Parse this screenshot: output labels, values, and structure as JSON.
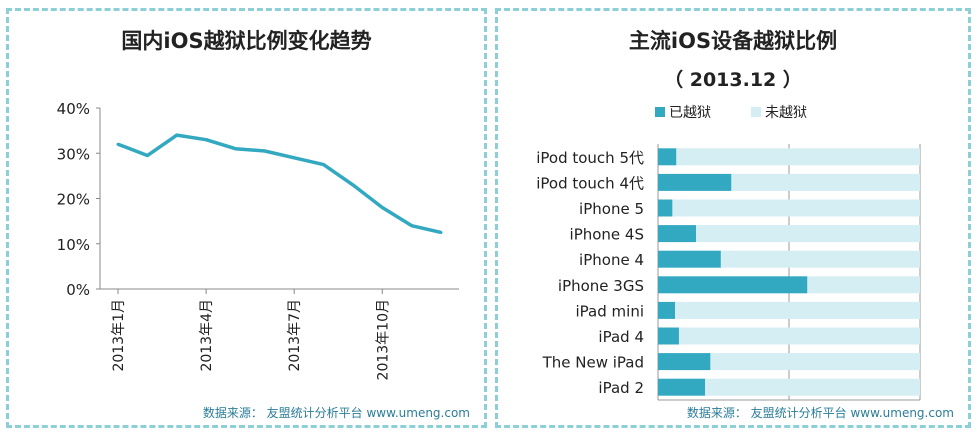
{
  "charts": {
    "left": {
      "title": "国内iOS越狱比例变化趋势",
      "source": "数据来源： 友盟统计分析平台 www.umeng.com"
    },
    "right": {
      "title": "主流iOS设备越狱比例",
      "subtitle": "（ 2013.12 ）",
      "source": "数据来源： 友盟统计分析平台 www.umeng.com"
    }
  },
  "colors": {
    "jailbroken": "#33a8c1",
    "not_jailbroken": "#d4eef3",
    "line": "#33a8c1",
    "border": "#8ccfd6"
  },
  "chart_data": [
    {
      "type": "line",
      "title": "国内iOS越狱比例变化趋势",
      "x": [
        "2013年1月",
        "2013年2月",
        "2013年3月",
        "2013年4月",
        "2013年5月",
        "2013年6月",
        "2013年7月",
        "2013年8月",
        "2013年9月",
        "2013年10月",
        "2013年11月",
        "2013年12月"
      ],
      "x_tick_labels": [
        "2013年1月",
        "2013年4月",
        "2013年7月",
        "2013年10月"
      ],
      "series": [
        {
          "values": [
            0.32,
            0.295,
            0.34,
            0.33,
            0.31,
            0.305,
            0.29,
            0.275,
            0.23,
            0.18,
            0.14,
            0.125
          ]
        }
      ],
      "y_tick_labels": [
        "40%",
        "30%",
        "20%",
        "10%",
        "0%"
      ],
      "ylim": [
        0,
        0.4
      ],
      "grid": false
    },
    {
      "type": "bar",
      "orientation": "horizontal",
      "stacked": true,
      "title": "主流iOS设备越狱比例",
      "subtitle": "（ 2013.12 ）",
      "categories": [
        "iPod touch 5代",
        "iPod touch 4代",
        "iPhone 5",
        "iPhone 4S",
        "iPhone 4",
        "iPhone 3GS",
        "iPad mini",
        "iPad 4",
        "The New iPad",
        "iPad 2"
      ],
      "series": [
        {
          "name": "已越狱",
          "values": [
            0.07,
            0.28,
            0.055,
            0.145,
            0.24,
            0.57,
            0.065,
            0.08,
            0.2,
            0.18
          ]
        },
        {
          "name": "未越狱",
          "values": [
            0.93,
            0.72,
            0.945,
            0.855,
            0.76,
            0.43,
            0.935,
            0.92,
            0.8,
            0.82
          ]
        }
      ],
      "xlim": [
        0,
        1
      ],
      "legend_position": "top",
      "grid": true
    }
  ]
}
